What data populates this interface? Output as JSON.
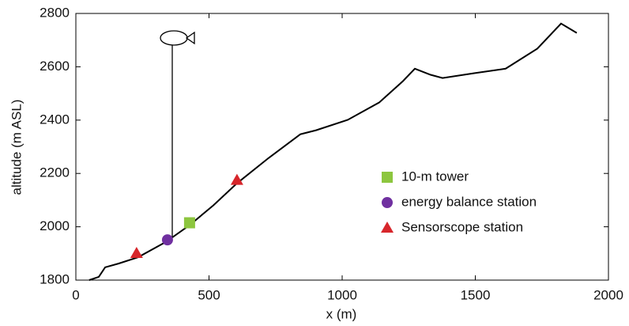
{
  "chart_data": {
    "type": "line",
    "xlabel": "x (m)",
    "ylabel": "altitude (m ASL)",
    "xlim": [
      0,
      2000
    ],
    "ylim": [
      1800,
      2800
    ],
    "xticks": [
      0,
      500,
      1000,
      1500,
      2000
    ],
    "yticks": [
      1800,
      2000,
      2200,
      2400,
      2600,
      2800
    ],
    "grid": false,
    "legend": "lower right",
    "series": [
      {
        "color": "#000000",
        "marker": "none",
        "x": [
          50,
          86,
          110,
          160,
          234,
          338,
          427,
          516,
          605,
          724,
          843,
          902,
          1021,
          1139,
          1228,
          1273,
          1332,
          1377,
          1496,
          1614,
          1733,
          1822,
          1881
        ],
        "values": [
          1800,
          1812,
          1848,
          1862,
          1886,
          1943,
          2006,
          2080,
          2163,
          2258,
          2347,
          2362,
          2401,
          2466,
          2546,
          2593,
          2570,
          2558,
          2576,
          2593,
          2668,
          2762,
          2727
        ]
      },
      {
        "name": "10-m tower",
        "color": "#8dc63f",
        "marker": "square",
        "x": [
          427
        ],
        "values": [
          2015
        ]
      },
      {
        "name": "energy balance station",
        "color": "#7030a0",
        "marker": "circle",
        "x": [
          344
        ],
        "values": [
          1951
        ]
      },
      {
        "name": "Sensorscope station",
        "color": "#d7262b",
        "marker": "triangle",
        "x": [
          228,
          605
        ],
        "values": [
          1901,
          2175
        ]
      }
    ]
  }
}
